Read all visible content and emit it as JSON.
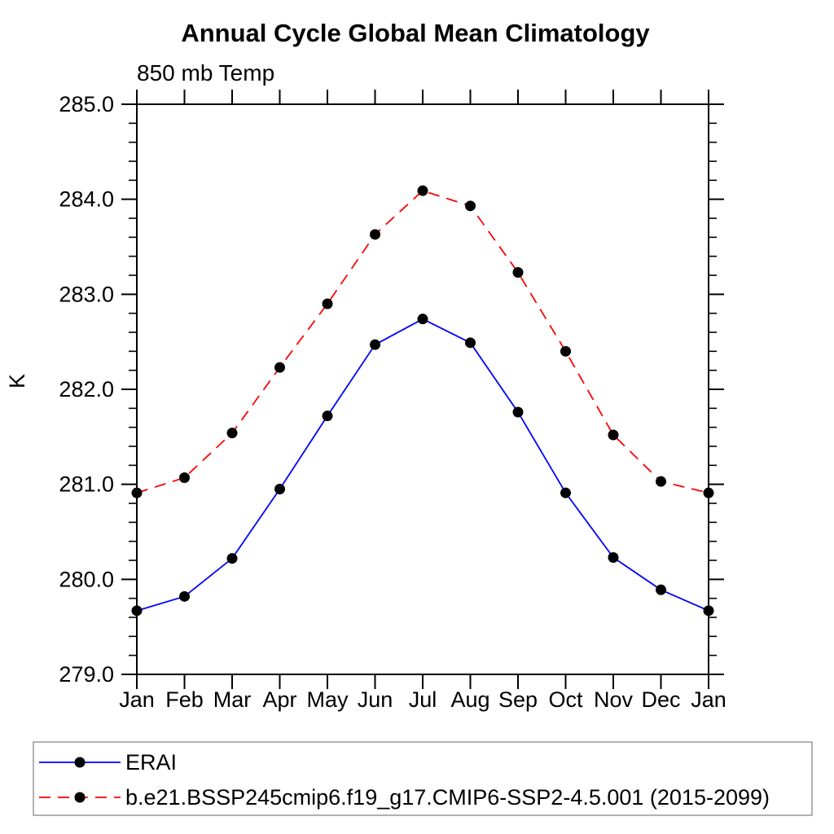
{
  "page": {
    "background": "#ffffff"
  },
  "chart_data": {
    "type": "line",
    "title": "Annual Cycle Global Mean Climatology",
    "subtitle": "850 mb Temp",
    "ylabel": "K",
    "xlabel": "",
    "x_categories": [
      "Jan",
      "Feb",
      "Mar",
      "Apr",
      "May",
      "Jun",
      "Jul",
      "Aug",
      "Sep",
      "Oct",
      "Nov",
      "Dec",
      "Jan"
    ],
    "ylim": [
      279.0,
      285.0
    ],
    "y_major_step": 1.0,
    "y_minor_step": 0.2,
    "y_tick_labels": [
      "279.0",
      "280.0",
      "281.0",
      "282.0",
      "283.0",
      "284.0",
      "285.0"
    ],
    "grid": false,
    "legend_position": "bottom-left-box",
    "marker": "filled-circle",
    "marker_color": "#000000",
    "series": [
      {
        "name": "ERAI",
        "color": "#0000ff",
        "line_style": "solid",
        "values": [
          279.67,
          279.82,
          280.22,
          280.95,
          281.72,
          282.47,
          282.74,
          282.49,
          281.76,
          280.91,
          280.23,
          279.89,
          279.67
        ]
      },
      {
        "name": "b.e21.BSSP245cmip6.f19_g17.CMIP6-SSP2-4.5.001 (2015-2099)",
        "color": "#ff0000",
        "line_style": "dashed",
        "values": [
          280.91,
          281.07,
          281.54,
          282.23,
          282.9,
          283.63,
          284.09,
          283.93,
          283.23,
          282.4,
          281.52,
          281.03,
          280.91
        ]
      }
    ]
  }
}
